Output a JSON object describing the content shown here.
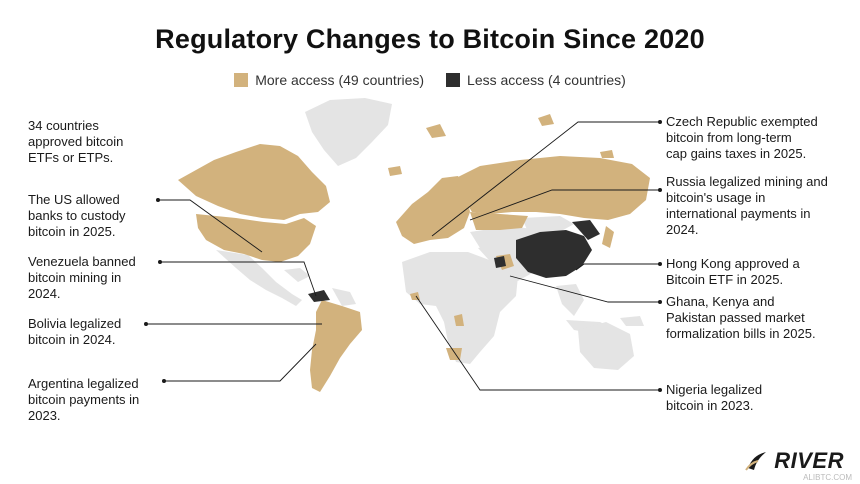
{
  "title": "Regulatory Changes to Bitcoin Since 2020",
  "legend": {
    "more": {
      "label": "More access (49 countries)",
      "color": "#d2b27d"
    },
    "less": {
      "label": "Less access (4 countries)",
      "color": "#2e2e2e"
    },
    "neutral_color": "#e4e4e4"
  },
  "annotations": {
    "etfs": "34 countries\napproved bitcoin\nETFs or ETPs.",
    "us": "The US allowed\nbanks to custody\nbitcoin in 2025.",
    "venezuela": "Venezuela banned\nbitcoin mining in\n2024.",
    "bolivia": "Bolivia legalized\nbitcoin in 2024.",
    "argentina": "Argentina legalized\nbitcoin payments in\n2023.",
    "czech": "Czech Republic exempted\nbitcoin from long-term\ncap gains taxes in 2025.",
    "russia": "Russia legalized mining and\nbitcoin's usage in\ninternational payments in\n2024.",
    "hongkong": "Hong Kong approved a\nBitcoin ETF in 2025.",
    "ghana": "Ghana, Kenya and\nPakistan passed market\nformalization bills in 2025.",
    "nigeria": "Nigeria legalized\nbitcoin in 2023."
  },
  "logo": {
    "text": "RIVER",
    "watermark": "ALIBTC.COM"
  }
}
